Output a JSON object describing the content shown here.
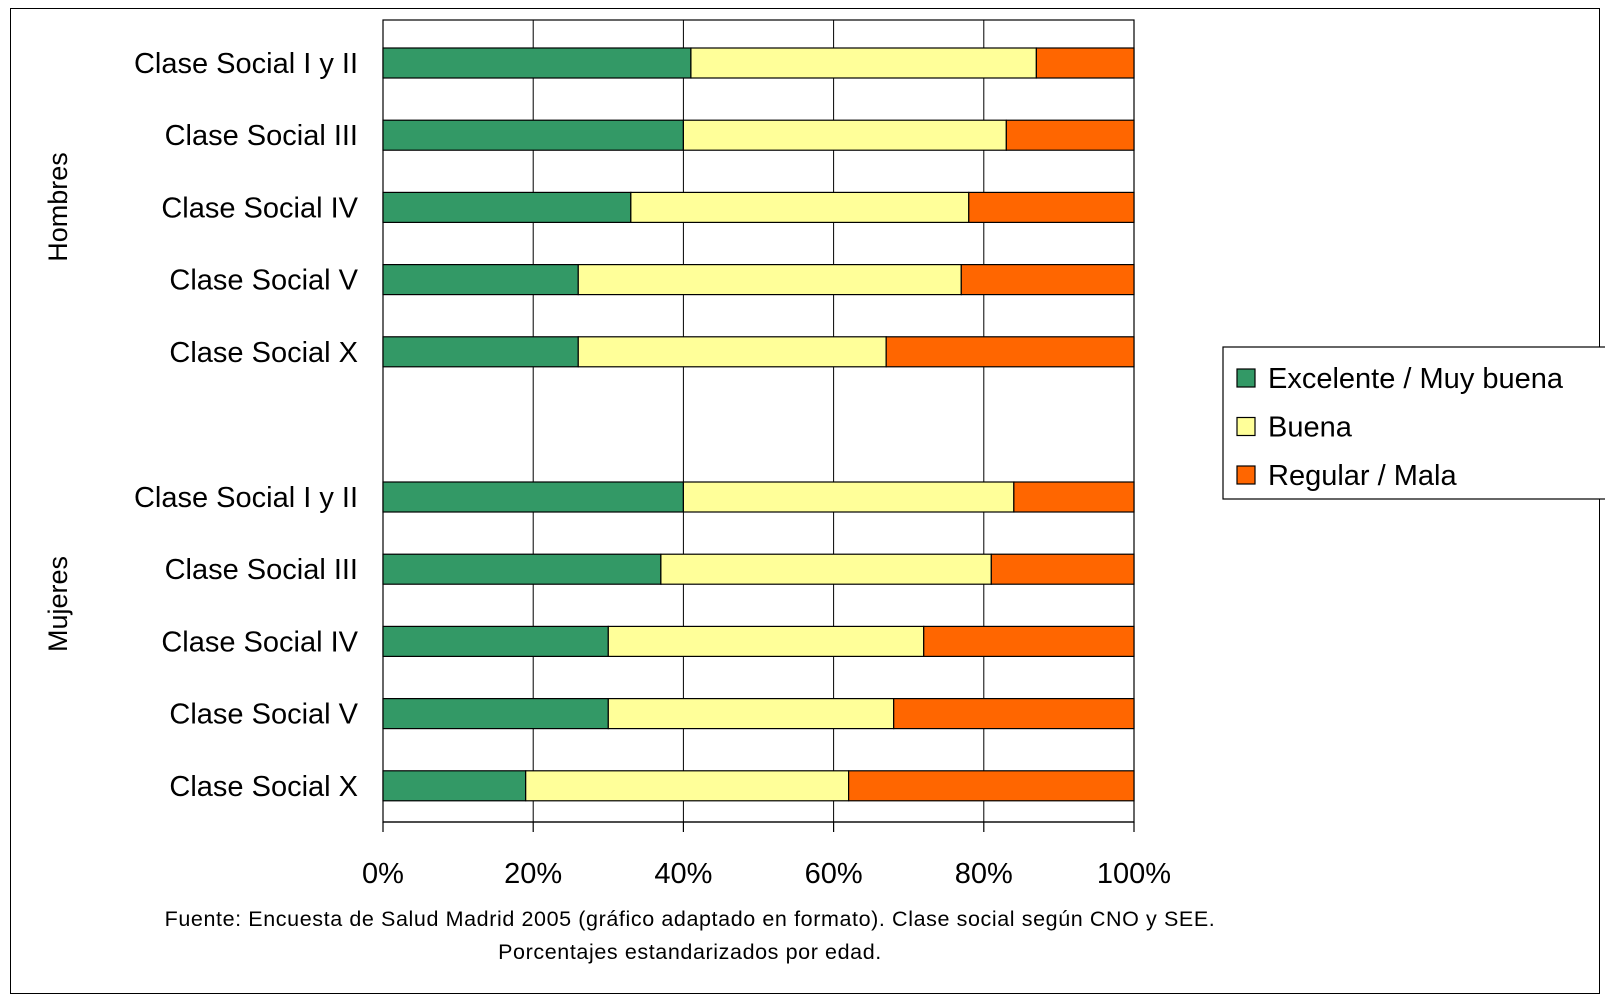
{
  "chart_data": {
    "type": "bar",
    "orientation": "horizontal",
    "stacked": "percent",
    "groups": [
      {
        "name": "Hombres",
        "categories": [
          "Clase Social I y II",
          "Clase Social III",
          "Clase Social IV",
          "Clase Social V",
          "Clase Social X"
        ],
        "series": [
          {
            "name": "Excelente / Muy buena",
            "values": [
              41,
              40,
              33,
              26,
              26
            ]
          },
          {
            "name": "Buena",
            "values": [
              46,
              43,
              45,
              51,
              41
            ]
          },
          {
            "name": "Regular / Mala",
            "values": [
              13,
              17,
              22,
              23,
              33
            ]
          }
        ]
      },
      {
        "name": "Mujeres",
        "categories": [
          "Clase Social I y II",
          "Clase Social III",
          "Clase Social IV",
          "Clase Social V",
          "Clase Social X"
        ],
        "series": [
          {
            "name": "Excelente / Muy buena",
            "values": [
              40,
              37,
              30,
              30,
              19
            ]
          },
          {
            "name": "Buena",
            "values": [
              44,
              44,
              42,
              38,
              43
            ]
          },
          {
            "name": "Regular / Mala",
            "values": [
              16,
              19,
              28,
              32,
              38
            ]
          }
        ]
      }
    ],
    "colors": [
      "#339966",
      "#FFFF99",
      "#FF6600"
    ],
    "x_ticks": [
      "0%",
      "20%",
      "40%",
      "60%",
      "80%",
      "100%"
    ],
    "xlim": [
      0,
      100
    ],
    "grid": true,
    "legend_position": "right",
    "footnote": "Fuente: Encuesta de Salud Madrid 2005 (gráfico adaptado en formato). Clase social según CNO y SEE. Porcentajes estandarizados por edad."
  }
}
